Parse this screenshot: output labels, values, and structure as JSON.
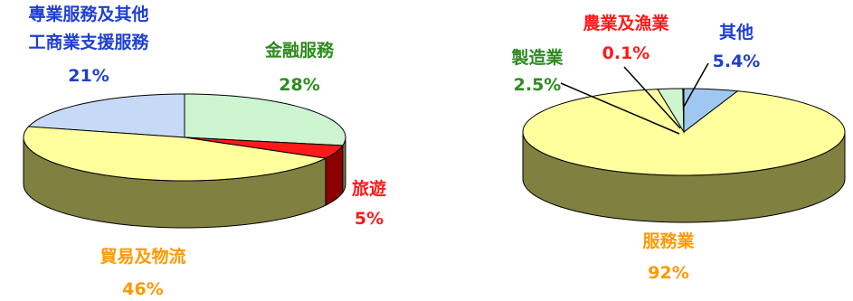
{
  "chart_data": [
    {
      "type": "pie",
      "style": "3d",
      "slices": [
        {
          "label_lines": [
            "專業服務及其他",
            "工商業支援服務"
          ],
          "value": 21,
          "value_text": "21%",
          "color": "#c6daf8",
          "label_color": "#1f3fd0"
        },
        {
          "label_lines": [
            "金融服務"
          ],
          "value": 28,
          "value_text": "28%",
          "color": "#ccf5d0",
          "label_color": "#2e8b1e"
        },
        {
          "label_lines": [
            "旅遊"
          ],
          "value": 5,
          "value_text": "5%",
          "color": "#ff1a1a",
          "label_color": "#ff1a1a"
        },
        {
          "label_lines": [
            "貿易及物流"
          ],
          "value": 46,
          "value_text": "46%",
          "color": "#ffff9e",
          "label_color": "#ff9900"
        }
      ],
      "side_color": "#808040"
    },
    {
      "type": "pie",
      "style": "3d",
      "slices": [
        {
          "label_lines": [
            "服務業"
          ],
          "value": 92,
          "value_text": "92%",
          "color": "#ffff9e",
          "label_color": "#ff9900"
        },
        {
          "label_lines": [
            "製造業"
          ],
          "value": 2.5,
          "value_text": "2.5%",
          "color": "#ccf5d0",
          "label_color": "#2e8b1e"
        },
        {
          "label_lines": [
            "農業及漁業"
          ],
          "value": 0.1,
          "value_text": "0.1%",
          "color": "#ff1a1a",
          "label_color": "#ff1a1a"
        },
        {
          "label_lines": [
            "其他"
          ],
          "value": 5.4,
          "value_text": "5.4%",
          "color": "#9ec8f0",
          "label_color": "#1f3fd0"
        }
      ],
      "side_color": "#808040"
    }
  ]
}
